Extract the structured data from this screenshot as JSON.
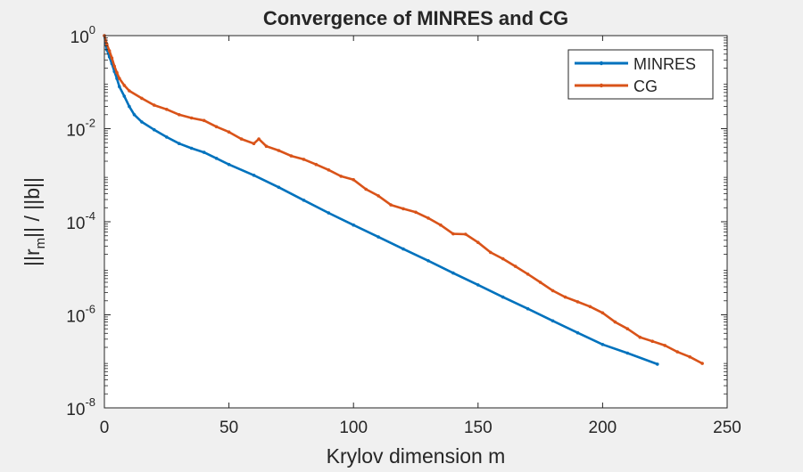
{
  "chart_data": {
    "type": "line",
    "title": "Convergence of MINRES and CG",
    "xlabel": "Krylov dimension m",
    "ylabel": {
      "main": "||r",
      "sub": "m",
      "rest": "|| / ||b||"
    },
    "xscale": "linear",
    "yscale": "log",
    "xlim": [
      0,
      250
    ],
    "ylim": [
      1e-08,
      1
    ],
    "xticks": [
      0,
      50,
      100,
      150,
      200,
      250
    ],
    "yticks": [
      {
        "value": 1,
        "base": "10",
        "exp": "0"
      },
      {
        "value": 0.01,
        "base": "10",
        "exp": "-2"
      },
      {
        "value": 0.0001,
        "base": "10",
        "exp": "-4"
      },
      {
        "value": 1e-06,
        "base": "10",
        "exp": "-6"
      },
      {
        "value": 1e-08,
        "base": "10",
        "exp": "-8"
      }
    ],
    "grid": false,
    "legend_position": "top-right",
    "series": [
      {
        "name": "MINRES",
        "color": "#0072bd",
        "marker": "dot",
        "x": [
          0,
          1,
          2,
          3,
          4,
          5,
          6,
          8,
          10,
          12,
          15,
          20,
          25,
          30,
          35,
          40,
          45,
          50,
          60,
          70,
          80,
          90,
          100,
          110,
          120,
          130,
          140,
          150,
          160,
          170,
          180,
          190,
          200,
          210,
          222
        ],
        "y": [
          1,
          0.5,
          0.35,
          0.25,
          0.17,
          0.12,
          0.08,
          0.05,
          0.03,
          0.02,
          0.014,
          0.0095,
          0.0066,
          0.0048,
          0.0038,
          0.0031,
          0.0023,
          0.0017,
          0.001,
          0.00055,
          0.00029,
          0.000155,
          8.5e-05,
          4.7e-05,
          2.6e-05,
          1.45e-05,
          7.9e-06,
          4.4e-06,
          2.4e-06,
          1.35e-06,
          7.4e-07,
          4.1e-07,
          2.3e-07,
          1.5e-07,
          8.7e-08
        ]
      },
      {
        "name": "CG",
        "color": "#d95319",
        "marker": "dot",
        "x": [
          0,
          1,
          2,
          3,
          4,
          5,
          6,
          8,
          10,
          15,
          20,
          25,
          30,
          35,
          40,
          45,
          50,
          55,
          60,
          62,
          65,
          70,
          75,
          80,
          85,
          90,
          95,
          100,
          105,
          110,
          115,
          120,
          125,
          130,
          135,
          140,
          145,
          150,
          155,
          160,
          165,
          170,
          175,
          180,
          185,
          190,
          195,
          200,
          205,
          210,
          215,
          220,
          225,
          230,
          235,
          240
        ],
        "y": [
          1,
          0.65,
          0.47,
          0.33,
          0.22,
          0.16,
          0.12,
          0.085,
          0.065,
          0.045,
          0.032,
          0.026,
          0.02,
          0.017,
          0.015,
          0.011,
          0.0085,
          0.006,
          0.0048,
          0.006,
          0.0042,
          0.0034,
          0.0026,
          0.0022,
          0.0017,
          0.0013,
          0.00095,
          0.0008,
          0.0005,
          0.00036,
          0.00023,
          0.00019,
          0.00016,
          0.00012,
          8.5e-05,
          5.5e-05,
          5.4e-05,
          3.6e-05,
          2.2e-05,
          1.6e-05,
          1.1e-05,
          7.5e-06,
          5e-06,
          3.3e-06,
          2.4e-06,
          1.9e-06,
          1.5e-06,
          1.1e-06,
          7e-07,
          5e-07,
          3.3e-07,
          2.7e-07,
          2.2e-07,
          1.6e-07,
          1.25e-07,
          9e-08
        ]
      }
    ]
  }
}
